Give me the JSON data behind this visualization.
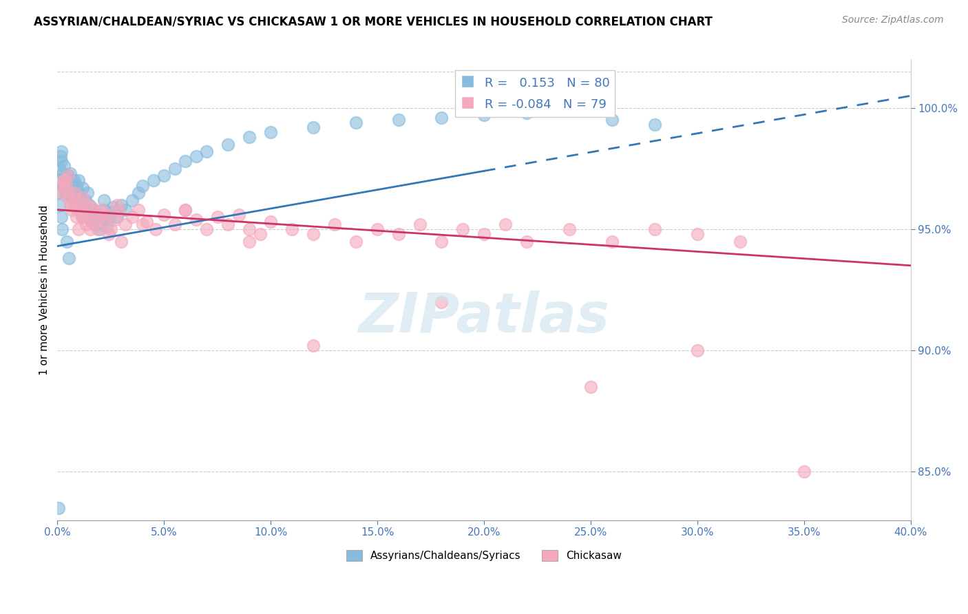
{
  "title": "ASSYRIAN/CHALDEAN/SYRIAC VS CHICKASAW 1 OR MORE VEHICLES IN HOUSEHOLD CORRELATION CHART",
  "source": "Source: ZipAtlas.com",
  "legend_label1": "Assyrians/Chaldeans/Syriacs",
  "legend_label2": "Chickasaw",
  "R1": 0.153,
  "N1": 80,
  "R2": -0.084,
  "N2": 79,
  "blue_color": "#88bbdd",
  "pink_color": "#f4a8bc",
  "blue_line_color": "#3377bb",
  "pink_line_color": "#cc3366",
  "xlim": [
    0.0,
    40.0
  ],
  "ylim": [
    83.0,
    102.0
  ],
  "blue_scatter_x": [
    0.1,
    0.15,
    0.2,
    0.2,
    0.25,
    0.3,
    0.3,
    0.35,
    0.4,
    0.4,
    0.5,
    0.5,
    0.55,
    0.6,
    0.6,
    0.65,
    0.7,
    0.7,
    0.8,
    0.8,
    0.85,
    0.9,
    0.9,
    1.0,
    1.0,
    1.1,
    1.1,
    1.2,
    1.2,
    1.3,
    1.3,
    1.4,
    1.5,
    1.5,
    1.6,
    1.7,
    1.8,
    1.9,
    2.0,
    2.0,
    2.1,
    2.2,
    2.3,
    2.4,
    2.5,
    2.6,
    2.8,
    3.0,
    3.2,
    3.5,
    3.8,
    4.0,
    4.5,
    5.0,
    5.5,
    6.0,
    6.5,
    7.0,
    8.0,
    9.0,
    10.0,
    12.0,
    14.0,
    16.0,
    18.0,
    20.0,
    22.0,
    24.0,
    26.0,
    28.0,
    0.05,
    0.08,
    0.12,
    0.18,
    0.22,
    0.28,
    0.45,
    0.55,
    2.2,
    0.05
  ],
  "blue_scatter_y": [
    97.5,
    98.0,
    97.8,
    98.2,
    97.3,
    97.6,
    96.8,
    97.1,
    96.5,
    97.0,
    96.8,
    97.2,
    96.4,
    96.9,
    97.3,
    96.6,
    96.3,
    97.0,
    96.5,
    97.0,
    96.2,
    96.8,
    95.9,
    96.5,
    97.0,
    96.3,
    95.8,
    96.7,
    95.5,
    96.2,
    95.9,
    96.5,
    96.0,
    95.7,
    95.4,
    95.8,
    95.2,
    95.6,
    95.0,
    95.5,
    95.3,
    95.8,
    95.1,
    95.4,
    95.7,
    95.9,
    95.5,
    96.0,
    95.8,
    96.2,
    96.5,
    96.8,
    97.0,
    97.2,
    97.5,
    97.8,
    98.0,
    98.2,
    98.5,
    98.8,
    99.0,
    99.2,
    99.4,
    99.5,
    99.6,
    99.7,
    99.8,
    99.9,
    99.5,
    99.3,
    96.5,
    97.0,
    96.0,
    95.5,
    95.0,
    96.8,
    94.5,
    93.8,
    96.2,
    83.5
  ],
  "pink_scatter_x": [
    0.2,
    0.3,
    0.4,
    0.5,
    0.5,
    0.6,
    0.7,
    0.8,
    0.9,
    1.0,
    1.0,
    1.1,
    1.2,
    1.3,
    1.4,
    1.5,
    1.6,
    1.7,
    1.8,
    1.9,
    2.0,
    2.1,
    2.2,
    2.3,
    2.5,
    2.7,
    2.9,
    3.2,
    3.5,
    3.8,
    4.2,
    4.6,
    5.0,
    5.5,
    6.0,
    6.5,
    7.0,
    7.5,
    8.0,
    8.5,
    9.0,
    9.5,
    10.0,
    11.0,
    12.0,
    13.0,
    14.0,
    15.0,
    16.0,
    17.0,
    18.0,
    19.0,
    20.0,
    21.0,
    22.0,
    24.0,
    26.0,
    28.0,
    30.0,
    32.0,
    0.35,
    0.55,
    0.75,
    0.95,
    1.15,
    1.35,
    1.55,
    2.4,
    3.0,
    4.0,
    6.0,
    9.0,
    12.0,
    18.0,
    25.0,
    30.0,
    35.0,
    0.25,
    2.8
  ],
  "pink_scatter_y": [
    96.5,
    97.0,
    96.8,
    96.3,
    97.2,
    96.0,
    95.8,
    96.5,
    95.5,
    96.2,
    95.0,
    95.8,
    96.3,
    95.6,
    96.0,
    95.4,
    95.9,
    95.2,
    95.7,
    95.0,
    95.5,
    95.8,
    95.3,
    95.6,
    95.0,
    95.4,
    95.7,
    95.2,
    95.5,
    95.8,
    95.3,
    95.0,
    95.6,
    95.2,
    95.8,
    95.4,
    95.0,
    95.5,
    95.2,
    95.6,
    95.0,
    94.8,
    95.3,
    95.0,
    94.8,
    95.2,
    94.5,
    95.0,
    94.8,
    95.2,
    94.5,
    95.0,
    94.8,
    95.2,
    94.5,
    95.0,
    94.5,
    95.0,
    94.8,
    94.5,
    97.0,
    96.5,
    96.0,
    95.8,
    95.5,
    95.2,
    95.0,
    94.8,
    94.5,
    95.2,
    95.8,
    94.5,
    90.2,
    92.0,
    88.5,
    90.0,
    85.0,
    96.8,
    96.0
  ],
  "blue_line_x0": 0.0,
  "blue_line_y0": 94.3,
  "blue_line_x1": 40.0,
  "blue_line_y1": 100.5,
  "blue_solid_end": 20.0,
  "pink_line_x0": 0.0,
  "pink_line_y0": 95.8,
  "pink_line_x1": 40.0,
  "pink_line_y1": 93.5
}
